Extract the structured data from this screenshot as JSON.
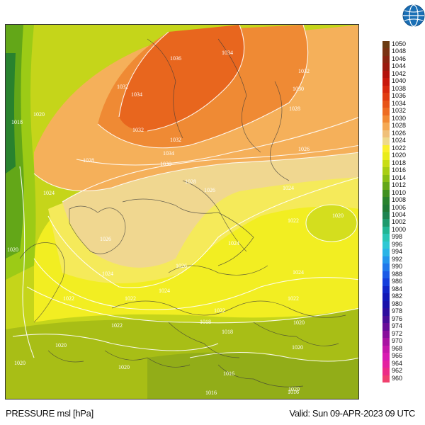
{
  "footer": {
    "field_label": "PRESSURE msl [hPa]",
    "valid_time": "Valid: Sun 09-APR-2023 09 UTC"
  },
  "logo": {
    "icon": "globe-logo-icon"
  },
  "legend": {
    "unit": "hPa",
    "levels": [
      1050,
      1048,
      1046,
      1044,
      1042,
      1040,
      1038,
      1036,
      1034,
      1032,
      1030,
      1028,
      1026,
      1024,
      1022,
      1020,
      1018,
      1016,
      1014,
      1012,
      1010,
      1008,
      1006,
      1004,
      1002,
      1000,
      998,
      996,
      994,
      992,
      990,
      988,
      986,
      984,
      982,
      980,
      978,
      976,
      974,
      972,
      970,
      968,
      966,
      964,
      962,
      960
    ],
    "colors": [
      "#6b3b12",
      "#7a3212",
      "#8a2410",
      "#9a1a0e",
      "#b3120c",
      "#c8180c",
      "#d8280e",
      "#e13c12",
      "#e85418",
      "#ee6c22",
      "#f28a34",
      "#f5a954",
      "#f0c07a",
      "#eed98c",
      "#fbef2c",
      "#e9ec1a",
      "#c8dd16",
      "#a8ce14",
      "#88be14",
      "#63a718",
      "#3f9020",
      "#28822e",
      "#1f7a36",
      "#1d8450",
      "#1e9a6c",
      "#22b694",
      "#2ac6b6",
      "#2ec8d4",
      "#2ab4e6",
      "#2496ec",
      "#2078ea",
      "#1a5ae6",
      "#143edc",
      "#1126c8",
      "#1218b6",
      "#1a10aa",
      "#2c0c9e",
      "#480c98",
      "#680c98",
      "#880e9c",
      "#a812a2",
      "#c416aa",
      "#d81ab2",
      "#e422a0",
      "#ec2c86",
      "#f0406e"
    ]
  },
  "isobars": [
    {
      "value": "1036"
    },
    {
      "value": "1034"
    },
    {
      "value": "1032"
    },
    {
      "value": "1034"
    },
    {
      "value": "1032"
    },
    {
      "value": "1030"
    },
    {
      "value": "1028"
    },
    {
      "value": "1032"
    },
    {
      "value": "1034"
    },
    {
      "value": "1032"
    },
    {
      "value": "1020"
    },
    {
      "value": "1018"
    },
    {
      "value": "1028"
    },
    {
      "value": "1030"
    },
    {
      "value": "1026"
    },
    {
      "value": "1028"
    },
    {
      "value": "1026"
    },
    {
      "value": "1024"
    },
    {
      "value": "1024"
    },
    {
      "value": "1022"
    },
    {
      "value": "1020"
    },
    {
      "value": "1026"
    },
    {
      "value": "1020"
    },
    {
      "value": "1024"
    },
    {
      "value": "1026"
    },
    {
      "value": "1024"
    },
    {
      "value": "1024"
    },
    {
      "value": "1022"
    },
    {
      "value": "1022"
    },
    {
      "value": "1024"
    },
    {
      "value": "1022"
    },
    {
      "value": "1022"
    },
    {
      "value": "1022"
    },
    {
      "value": "1020"
    },
    {
      "value": "1020"
    },
    {
      "value": "1018"
    },
    {
      "value": "1020"
    },
    {
      "value": "1018"
    },
    {
      "value": "1020"
    },
    {
      "value": "1020"
    },
    {
      "value": "1020"
    },
    {
      "value": "1016"
    },
    {
      "value": "1016"
    },
    {
      "value": "1016"
    }
  ]
}
